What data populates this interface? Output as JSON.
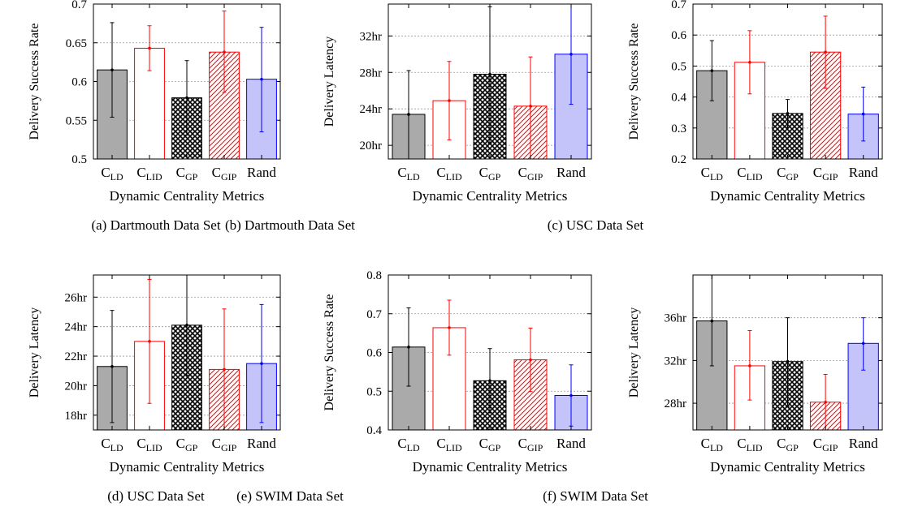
{
  "chart_data": [
    {
      "type": "bar",
      "panel_label": "(a)",
      "caption": "Dartmouth Data Set",
      "xlabel": "Dynamic Centrality Metrics",
      "ylabel": "Delivery Success Rate",
      "ylim": [
        0.5,
        0.7
      ],
      "yticks": [
        "0.5",
        "0.55",
        "0.6",
        "0.65",
        "0.7"
      ],
      "ytick_values": [
        0.5,
        0.55,
        0.6,
        0.65,
        0.7
      ],
      "grid": true,
      "categories": [
        {
          "main": "C",
          "sub": "LD"
        },
        {
          "main": "C",
          "sub": "LID"
        },
        {
          "main": "C",
          "sub": "GP"
        },
        {
          "main": "C",
          "sub": "GIP"
        },
        {
          "main": "Rand",
          "sub": ""
        }
      ],
      "values": [
        0.615,
        0.643,
        0.579,
        0.638,
        0.603
      ],
      "error_low": [
        0.554,
        0.614,
        0.531,
        0.586,
        0.535
      ],
      "error_high": [
        0.676,
        0.672,
        0.627,
        0.691,
        0.67
      ]
    },
    {
      "type": "bar",
      "panel_label": "(b)",
      "caption": "Dartmouth Data Set",
      "xlabel": "Dynamic Centrality Metrics",
      "ylabel": "Delivery Latency",
      "ylim": [
        18.5,
        35.5
      ],
      "yticks": [
        "20hr",
        "24hr",
        "28hr",
        "32hr"
      ],
      "ytick_values": [
        20,
        24,
        28,
        32
      ],
      "grid": true,
      "categories": [
        {
          "main": "C",
          "sub": "LD"
        },
        {
          "main": "C",
          "sub": "LID"
        },
        {
          "main": "C",
          "sub": "GP"
        },
        {
          "main": "C",
          "sub": "GIP"
        },
        {
          "main": "Rand",
          "sub": ""
        }
      ],
      "values": [
        23.4,
        24.9,
        27.8,
        24.3,
        30.0
      ],
      "error_low": [
        18.5,
        20.6,
        20.2,
        18.5,
        24.5
      ],
      "error_high": [
        28.2,
        29.2,
        35.2,
        29.7,
        35.5
      ]
    },
    {
      "type": "bar",
      "panel_label": "(c)",
      "caption": "USC Data Set",
      "xlabel": "Dynamic Centrality Metrics",
      "ylabel": "Delivery Success Rate",
      "ylim": [
        0.2,
        0.7
      ],
      "yticks": [
        "0.2",
        "0.3",
        "0.4",
        "0.5",
        "0.6",
        "0.7"
      ],
      "ytick_values": [
        0.2,
        0.3,
        0.4,
        0.5,
        0.6,
        0.7
      ],
      "grid": true,
      "categories": [
        {
          "main": "C",
          "sub": "LD"
        },
        {
          "main": "C",
          "sub": "LID"
        },
        {
          "main": "C",
          "sub": "GP"
        },
        {
          "main": "C",
          "sub": "GIP"
        },
        {
          "main": "Rand",
          "sub": ""
        }
      ],
      "values": [
        0.485,
        0.512,
        0.347,
        0.545,
        0.345
      ],
      "error_low": [
        0.388,
        0.41,
        0.302,
        0.428,
        0.258
      ],
      "error_high": [
        0.582,
        0.614,
        0.392,
        0.661,
        0.432
      ]
    },
    {
      "type": "bar",
      "panel_label": "(d)",
      "caption": "USC Data Set",
      "xlabel": "Dynamic Centrality Metrics",
      "ylabel": "Delivery Latency",
      "ylim": [
        17,
        27.5
      ],
      "yticks": [
        "18hr",
        "20hr",
        "22hr",
        "24hr",
        "26hr"
      ],
      "ytick_values": [
        18,
        20,
        22,
        24,
        26
      ],
      "grid": true,
      "categories": [
        {
          "main": "C",
          "sub": "LD"
        },
        {
          "main": "C",
          "sub": "LID"
        },
        {
          "main": "C",
          "sub": "GP"
        },
        {
          "main": "C",
          "sub": "GIP"
        },
        {
          "main": "Rand",
          "sub": ""
        }
      ],
      "values": [
        21.3,
        23.0,
        24.1,
        21.1,
        21.5
      ],
      "error_low": [
        17.5,
        18.8,
        20.7,
        17.0,
        17.5
      ],
      "error_high": [
        25.1,
        27.2,
        27.5,
        25.2,
        25.5
      ]
    },
    {
      "type": "bar",
      "panel_label": "(e)",
      "caption": "SWIM Data Set",
      "xlabel": "Dynamic Centrality Metrics",
      "ylabel": "Delivery Success Rate",
      "ylim": [
        0.4,
        0.8
      ],
      "yticks": [
        "0.4",
        "0.5",
        "0.6",
        "0.7",
        "0.8"
      ],
      "ytick_values": [
        0.4,
        0.5,
        0.6,
        0.7,
        0.8
      ],
      "grid": true,
      "categories": [
        {
          "main": "C",
          "sub": "LD"
        },
        {
          "main": "C",
          "sub": "LID"
        },
        {
          "main": "C",
          "sub": "GP"
        },
        {
          "main": "C",
          "sub": "GIP"
        },
        {
          "main": "Rand",
          "sub": ""
        }
      ],
      "values": [
        0.614,
        0.664,
        0.527,
        0.581,
        0.489
      ],
      "error_low": [
        0.513,
        0.593,
        0.444,
        0.499,
        0.41
      ],
      "error_high": [
        0.715,
        0.735,
        0.61,
        0.663,
        0.568
      ]
    },
    {
      "type": "bar",
      "panel_label": "(f)",
      "caption": "SWIM Data Set",
      "xlabel": "Dynamic Centrality Metrics",
      "ylabel": "Delivery Latency",
      "ylim": [
        25.5,
        40
      ],
      "yticks": [
        "28hr",
        "32hr",
        "36hr"
      ],
      "ytick_values": [
        28,
        32,
        36
      ],
      "grid": true,
      "categories": [
        {
          "main": "C",
          "sub": "LD"
        },
        {
          "main": "C",
          "sub": "LID"
        },
        {
          "main": "C",
          "sub": "GP"
        },
        {
          "main": "C",
          "sub": "GIP"
        },
        {
          "main": "Rand",
          "sub": ""
        }
      ],
      "values": [
        35.7,
        31.5,
        31.9,
        28.1,
        33.6
      ],
      "error_low": [
        31.5,
        28.3,
        27.7,
        25.5,
        31.1
      ],
      "error_high": [
        40.0,
        34.8,
        36.0,
        30.7,
        36.0
      ]
    }
  ],
  "styles": {
    "bar_styles": [
      {
        "fill": "#aaaaaa",
        "stroke": "#000000",
        "pattern": "solid",
        "error_color": "#000000"
      },
      {
        "fill": "#ffffff",
        "stroke": "#ff0000",
        "pattern": "none",
        "error_color": "#ff0000"
      },
      {
        "fill": "#ffffff",
        "stroke": "#000000",
        "pattern": "crosshatch",
        "error_color": "#000000"
      },
      {
        "fill": "#ffffff",
        "stroke": "#ff0000",
        "pattern": "diagonal",
        "error_color": "#ff0000"
      },
      {
        "fill": "#c4c4fa",
        "stroke": "#0000ff",
        "pattern": "solid",
        "error_color": "#0000ff"
      }
    ],
    "grid_color": "#999999"
  }
}
